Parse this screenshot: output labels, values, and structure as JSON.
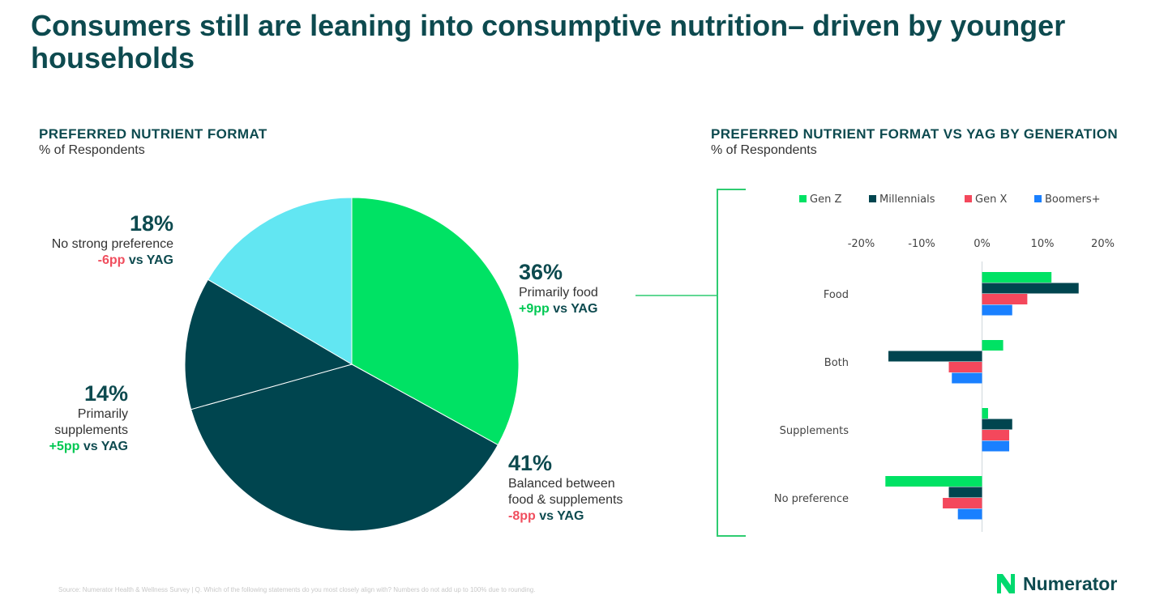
{
  "title": "Consumers still are leaning into consumptive nutrition– driven by younger households",
  "left_section": {
    "title": "PREFERRED NUTRIENT FORMAT",
    "subtitle": "% of Respondents"
  },
  "right_section": {
    "title": "PREFERRED NUTRIENT FORMAT VS YAG BY GENERATION",
    "subtitle": "% of Respondents"
  },
  "pie_labels": {
    "food": {
      "pct": "36%",
      "desc": "Primarily food",
      "delta": "+9pp",
      "vs": " vs YAG"
    },
    "balanced": {
      "pct": "41%",
      "desc1": "Balanced between",
      "desc2": "food & supplements",
      "delta": "-8pp",
      "vs": " vs YAG"
    },
    "supplements": {
      "pct": "14%",
      "desc1": "Primarily",
      "desc2": "supplements",
      "delta": "+5pp",
      "vs": " vs YAG"
    },
    "none": {
      "pct": "18%",
      "desc": "No strong preference",
      "delta": "-6pp",
      "vs": " vs YAG"
    }
  },
  "footer": "Source: Numerator Health & Wellness Survey | Q. Which of the following statements do you most closely align with? Numbers do not add up to 100% due to rounding.",
  "logo": {
    "text": "Numerator"
  },
  "colors": {
    "gen_z": "#00e264",
    "millennials": "#00454f",
    "gen_x": "#f4485c",
    "boomers": "#1a80ff",
    "light_cyan": "#62e6f2",
    "bracket": "#2ecc71"
  },
  "chart_data": [
    {
      "type": "pie",
      "title": "PREFERRED NUTRIENT FORMAT",
      "subtitle": "% of Respondents",
      "slices": [
        {
          "label": "Primarily food",
          "value": 36,
          "change": "+9pp vs YAG",
          "color": "#00e264"
        },
        {
          "label": "Balanced between food & supplements",
          "value": 41,
          "change": "-8pp vs YAG",
          "color": "#00454f"
        },
        {
          "label": "Primarily supplements",
          "value": 14,
          "change": "+5pp vs YAG",
          "color": "#00454f"
        },
        {
          "label": "No strong preference",
          "value": 18,
          "change": "-6pp vs YAG",
          "color": "#62e6f2"
        }
      ]
    },
    {
      "type": "bar",
      "orientation": "horizontal",
      "title": "PREFERRED NUTRIENT FORMAT VS YAG BY GENERATION",
      "subtitle": "% of Respondents",
      "categories": [
        "Food",
        "Both",
        "Supplements",
        "No preference"
      ],
      "xticks": [
        "-20%",
        "-10%",
        "0%",
        "10%",
        "20%"
      ],
      "xlim": [
        -20,
        20
      ],
      "legend_position": "top",
      "series": [
        {
          "name": "Gen Z",
          "color": "#00e264",
          "values": [
            11.5,
            3.5,
            1,
            -16
          ]
        },
        {
          "name": "Millennials",
          "color": "#00454f",
          "values": [
            16,
            -15.5,
            5,
            -5.5
          ]
        },
        {
          "name": "Gen X",
          "color": "#f4485c",
          "values": [
            7.5,
            -5.5,
            4.5,
            -6.5
          ]
        },
        {
          "name": "Boomers+",
          "color": "#1a80ff",
          "values": [
            5,
            -5,
            4.5,
            -4
          ]
        }
      ]
    }
  ]
}
